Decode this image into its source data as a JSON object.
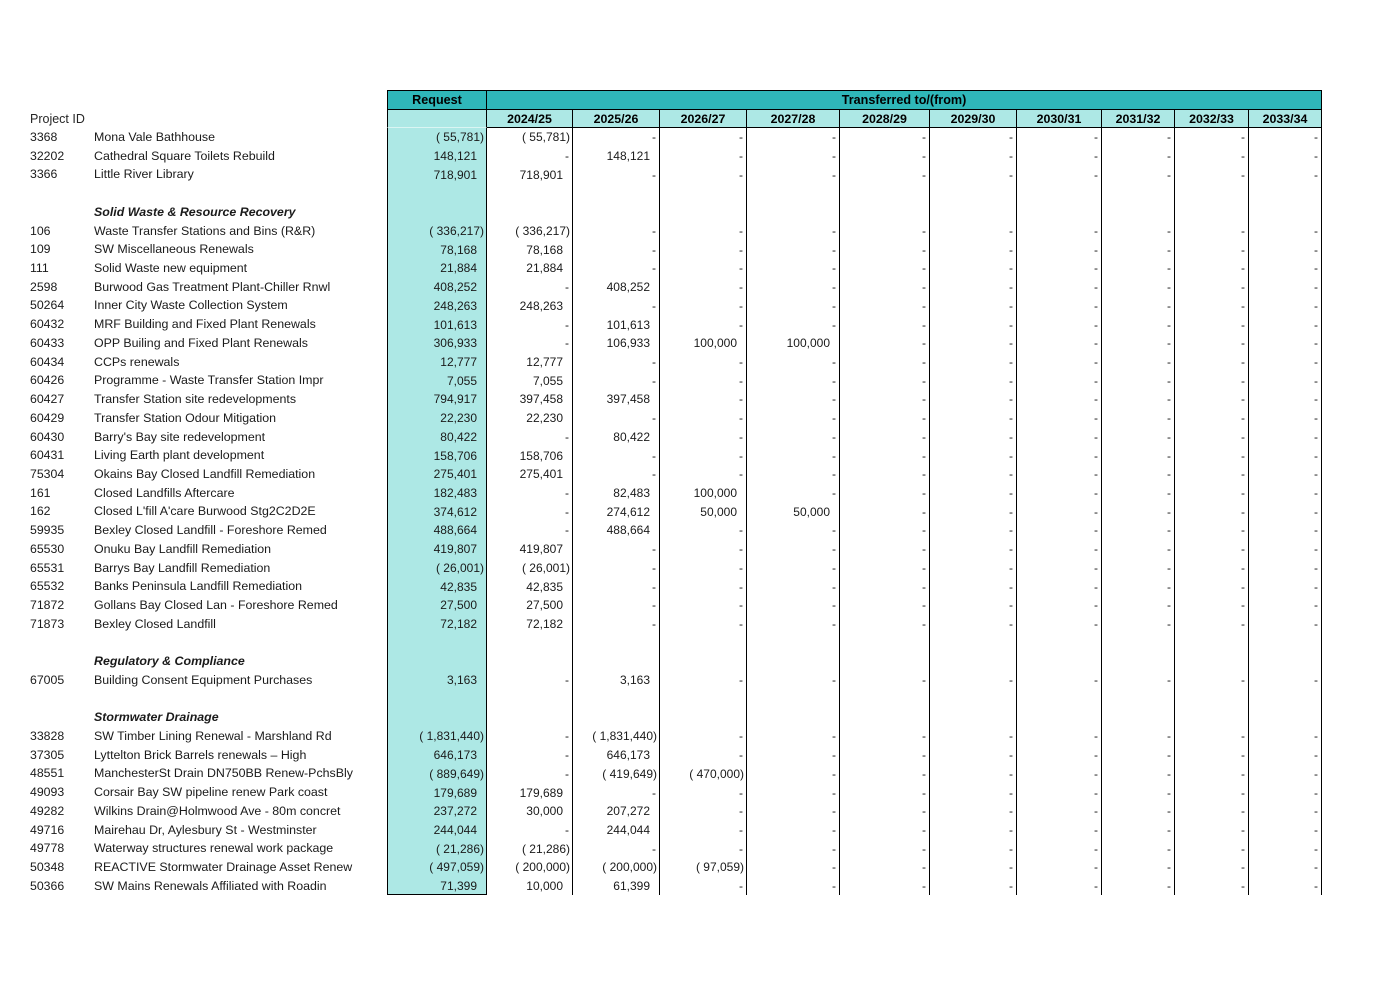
{
  "title": "Project transfers table",
  "colors": {
    "header_teal": "#2FB7B9",
    "light_teal": "#ADE8E5",
    "grid_line": "#000000",
    "text": "#1a1a1a"
  },
  "header": {
    "project_id_label": "Project ID",
    "request_label": "Request",
    "transferred_label": "Transferred to/(from)",
    "years": [
      "2024/25",
      "2025/26",
      "2026/27",
      "2027/28",
      "2028/29",
      "2029/30",
      "2030/31",
      "2031/32",
      "2032/33",
      "2033/34"
    ]
  },
  "rows": [
    {
      "t": "d",
      "id": "3368",
      "name": "Mona Vale Bathhouse",
      "request": "( 55,781)",
      "v": [
        "( 55,781)",
        "-",
        "-",
        "-",
        "-",
        "-",
        "-",
        "-",
        "-",
        "-"
      ]
    },
    {
      "t": "d",
      "id": "32202",
      "name": "Cathedral Square Toilets Rebuild",
      "request": "148,121",
      "v": [
        "-",
        "148,121",
        "-",
        "-",
        "-",
        "-",
        "-",
        "-",
        "-",
        "-"
      ]
    },
    {
      "t": "d",
      "id": "3366",
      "name": "Little River Library",
      "request": "718,901",
      "v": [
        "718,901",
        "-",
        "-",
        "-",
        "-",
        "-",
        "-",
        "-",
        "-",
        "-"
      ]
    },
    {
      "t": "b"
    },
    {
      "t": "s",
      "name": "Solid Waste & Resource Recovery"
    },
    {
      "t": "d",
      "id": "106",
      "name": "Waste Transfer Stations and Bins (R&R)",
      "request": "( 336,217)",
      "v": [
        "( 336,217)",
        "-",
        "-",
        "-",
        "-",
        "-",
        "-",
        "-",
        "-",
        "-"
      ]
    },
    {
      "t": "d",
      "id": "109",
      "name": "SW Miscellaneous Renewals",
      "request": "78,168",
      "v": [
        "78,168",
        "-",
        "-",
        "-",
        "-",
        "-",
        "-",
        "-",
        "-",
        "-"
      ]
    },
    {
      "t": "d",
      "id": "111",
      "name": "Solid Waste new equipment",
      "request": "21,884",
      "v": [
        "21,884",
        "-",
        "-",
        "-",
        "-",
        "-",
        "-",
        "-",
        "-",
        "-"
      ]
    },
    {
      "t": "d",
      "id": "2598",
      "name": "Burwood Gas Treatment Plant-Chiller Rnwl",
      "request": "408,252",
      "v": [
        "-",
        "408,252",
        "-",
        "-",
        "-",
        "-",
        "-",
        "-",
        "-",
        "-"
      ]
    },
    {
      "t": "d",
      "id": "50264",
      "name": "Inner City Waste Collection System",
      "request": "248,263",
      "v": [
        "248,263",
        "-",
        "-",
        "-",
        "-",
        "-",
        "-",
        "-",
        "-",
        "-"
      ]
    },
    {
      "t": "d",
      "id": "60432",
      "name": "MRF Building and Fixed Plant Renewals",
      "request": "101,613",
      "v": [
        "-",
        "101,613",
        "-",
        "-",
        "-",
        "-",
        "-",
        "-",
        "-",
        "-"
      ]
    },
    {
      "t": "d",
      "id": "60433",
      "name": "OPP Builing and Fixed Plant Renewals",
      "request": "306,933",
      "v": [
        "-",
        "106,933",
        "100,000",
        "100,000",
        "-",
        "-",
        "-",
        "-",
        "-",
        "-"
      ]
    },
    {
      "t": "d",
      "id": "60434",
      "name": "CCPs renewals",
      "request": "12,777",
      "v": [
        "12,777",
        "-",
        "-",
        "-",
        "-",
        "-",
        "-",
        "-",
        "-",
        "-"
      ]
    },
    {
      "t": "d",
      "id": "60426",
      "name": "Programme  - Waste Transfer Station Impr",
      "request": "7,055",
      "v": [
        "7,055",
        "-",
        "-",
        "-",
        "-",
        "-",
        "-",
        "-",
        "-",
        "-"
      ]
    },
    {
      "t": "d",
      "id": "60427",
      "name": "Transfer Station site redevelopments",
      "request": "794,917",
      "v": [
        "397,458",
        "397,458",
        "-",
        "-",
        "-",
        "-",
        "-",
        "-",
        "-",
        "-"
      ]
    },
    {
      "t": "d",
      "id": "60429",
      "name": "Transfer Station Odour Mitigation",
      "request": "22,230",
      "v": [
        "22,230",
        "-",
        "-",
        "-",
        "-",
        "-",
        "-",
        "-",
        "-",
        "-"
      ]
    },
    {
      "t": "d",
      "id": "60430",
      "name": "Barry's Bay site redevelopment",
      "request": "80,422",
      "v": [
        "-",
        "80,422",
        "-",
        "-",
        "-",
        "-",
        "-",
        "-",
        "-",
        "-"
      ]
    },
    {
      "t": "d",
      "id": "60431",
      "name": "Living Earth plant development",
      "request": "158,706",
      "v": [
        "158,706",
        "-",
        "-",
        "-",
        "-",
        "-",
        "-",
        "-",
        "-",
        "-"
      ]
    },
    {
      "t": "d",
      "id": "75304",
      "name": "Okains Bay Closed Landfill Remediation",
      "request": "275,401",
      "v": [
        "275,401",
        "-",
        "-",
        "-",
        "-",
        "-",
        "-",
        "-",
        "-",
        "-"
      ]
    },
    {
      "t": "d",
      "id": "161",
      "name": "Closed Landfills Aftercare",
      "request": "182,483",
      "v": [
        "-",
        "82,483",
        "100,000",
        "-",
        "-",
        "-",
        "-",
        "-",
        "-",
        "-"
      ]
    },
    {
      "t": "d",
      "id": "162",
      "name": "Closed L'fill A'care  Burwood Stg2C2D2E",
      "request": "374,612",
      "v": [
        "-",
        "274,612",
        "50,000",
        "50,000",
        "-",
        "-",
        "-",
        "-",
        "-",
        "-"
      ]
    },
    {
      "t": "d",
      "id": "59935",
      "name": "Bexley Closed Landfill - Foreshore Remed",
      "request": "488,664",
      "v": [
        "-",
        "488,664",
        "-",
        "-",
        "-",
        "-",
        "-",
        "-",
        "-",
        "-"
      ]
    },
    {
      "t": "d",
      "id": "65530",
      "name": "Onuku Bay Landfill Remediation",
      "request": "419,807",
      "v": [
        "419,807",
        "-",
        "-",
        "-",
        "-",
        "-",
        "-",
        "-",
        "-",
        "-"
      ]
    },
    {
      "t": "d",
      "id": "65531",
      "name": "Barrys Bay Landfill Remediation",
      "request": "( 26,001)",
      "v": [
        "( 26,001)",
        "-",
        "-",
        "-",
        "-",
        "-",
        "-",
        "-",
        "-",
        "-"
      ]
    },
    {
      "t": "d",
      "id": "65532",
      "name": "Banks Peninsula Landfill Remediation",
      "request": "42,835",
      "v": [
        "42,835",
        "-",
        "-",
        "-",
        "-",
        "-",
        "-",
        "-",
        "-",
        "-"
      ]
    },
    {
      "t": "d",
      "id": "71872",
      "name": "Gollans Bay Closed Lan - Foreshore Remed",
      "request": "27,500",
      "v": [
        "27,500",
        "-",
        "-",
        "-",
        "-",
        "-",
        "-",
        "-",
        "-",
        "-"
      ]
    },
    {
      "t": "d",
      "id": "71873",
      "name": "Bexley Closed Landfill",
      "request": "72,182",
      "v": [
        "72,182",
        "-",
        "-",
        "-",
        "-",
        "-",
        "-",
        "-",
        "-",
        "-"
      ]
    },
    {
      "t": "b"
    },
    {
      "t": "s",
      "name": "Regulatory & Compliance"
    },
    {
      "t": "d",
      "id": "67005",
      "name": "Building Consent Equipment Purchases",
      "request": "3,163",
      "v": [
        "-",
        "3,163",
        "-",
        "-",
        "-",
        "-",
        "-",
        "-",
        "-",
        "-"
      ]
    },
    {
      "t": "b"
    },
    {
      "t": "s",
      "name": "Stormwater Drainage"
    },
    {
      "t": "d",
      "id": "33828",
      "name": "SW Timber Lining Renewal - Marshland Rd",
      "request": "( 1,831,440)",
      "v": [
        "-",
        "( 1,831,440)",
        "-",
        "-",
        "-",
        "-",
        "-",
        "-",
        "-",
        "-"
      ]
    },
    {
      "t": "d",
      "id": "37305",
      "name": "Lyttelton Brick Barrels renewals – High",
      "request": "646,173",
      "v": [
        "-",
        "646,173",
        "-",
        "-",
        "-",
        "-",
        "-",
        "-",
        "-",
        "-"
      ]
    },
    {
      "t": "d",
      "id": "48551",
      "name": "ManchesterSt Drain DN750BB Renew-PchsBly",
      "request": "( 889,649)",
      "v": [
        "-",
        "( 419,649)",
        "( 470,000)",
        "-",
        "-",
        "-",
        "-",
        "-",
        "-",
        "-"
      ]
    },
    {
      "t": "d",
      "id": "49093",
      "name": "Corsair Bay SW pipeline renew Park coast",
      "request": "179,689",
      "v": [
        "179,689",
        "-",
        "-",
        "-",
        "-",
        "-",
        "-",
        "-",
        "-",
        "-"
      ]
    },
    {
      "t": "d",
      "id": "49282",
      "name": "Wilkins Drain@Holmwood Ave - 80m concret",
      "request": "237,272",
      "v": [
        "30,000",
        "207,272",
        "-",
        "-",
        "-",
        "-",
        "-",
        "-",
        "-",
        "-"
      ]
    },
    {
      "t": "d",
      "id": "49716",
      "name": "Mairehau Dr, Aylesbury St - Westminster",
      "request": "244,044",
      "v": [
        "-",
        "244,044",
        "-",
        "-",
        "-",
        "-",
        "-",
        "-",
        "-",
        "-"
      ]
    },
    {
      "t": "d",
      "id": "49778",
      "name": "Waterway structures renewal work package",
      "request": "( 21,286)",
      "v": [
        "( 21,286)",
        "-",
        "-",
        "-",
        "-",
        "-",
        "-",
        "-",
        "-",
        "-"
      ]
    },
    {
      "t": "d",
      "id": "50348",
      "name": "REACTIVE Stormwater Drainage Asset Renew",
      "request": "( 497,059)",
      "v": [
        "( 200,000)",
        "( 200,000)",
        "( 97,059)",
        "-",
        "-",
        "-",
        "-",
        "-",
        "-",
        "-"
      ]
    },
    {
      "t": "d",
      "id": "50366",
      "name": "SW Mains Renewals Affiliated with Roadin",
      "request": "71,399",
      "v": [
        "10,000",
        "61,399",
        "-",
        "-",
        "-",
        "-",
        "-",
        "-",
        "-",
        "-"
      ]
    }
  ]
}
